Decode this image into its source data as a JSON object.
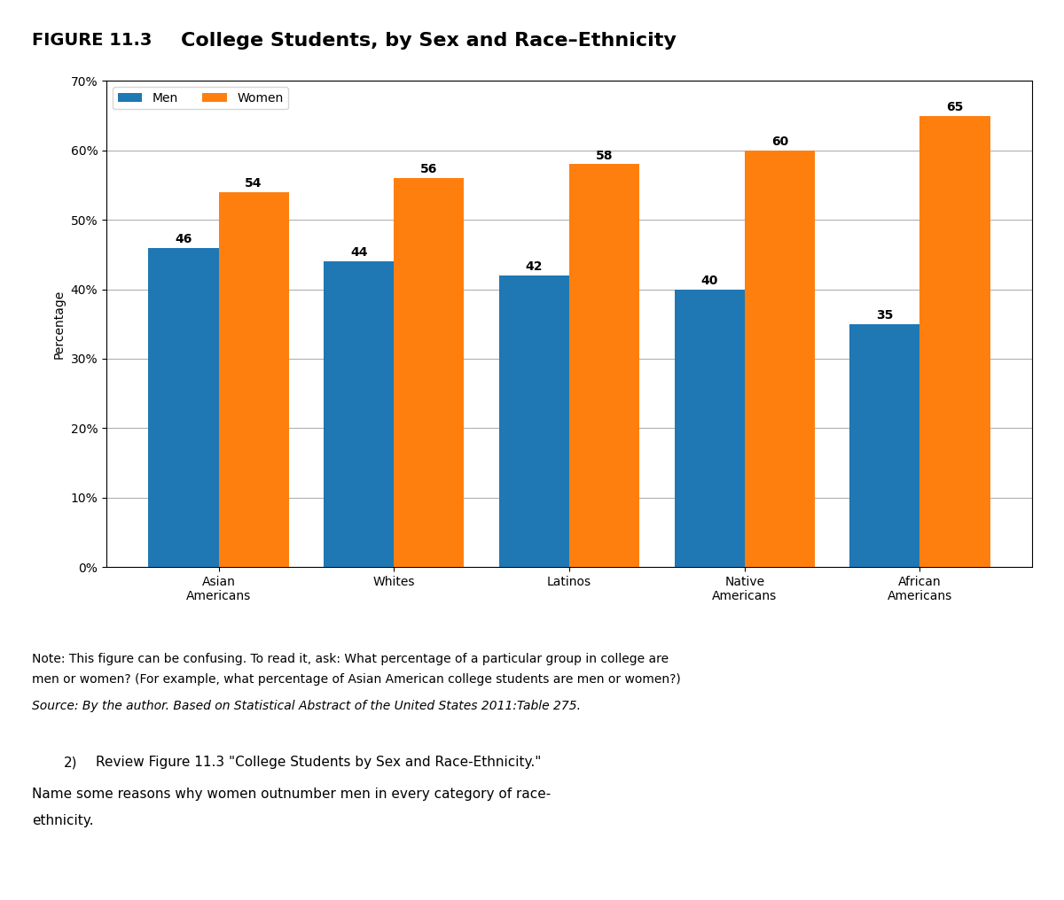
{
  "chart_data": {
    "type": "bar",
    "title": "College Students, by Sex and Race–Ethnicity",
    "ylabel": "Percentage",
    "categories": [
      "Asian\nAmericans",
      "Whites",
      "Latinos",
      "Native\nAmericans",
      "African\nAmericans"
    ],
    "series": [
      {
        "name": "Men",
        "values": [
          46,
          44,
          42,
          40,
          35
        ]
      },
      {
        "name": "Women",
        "values": [
          54,
          56,
          58,
          60,
          65
        ]
      }
    ],
    "ylim": [
      0,
      70
    ],
    "yticks": [
      {
        "value": 0,
        "label": "0%"
      },
      {
        "value": 10,
        "label": "10%"
      },
      {
        "value": 20,
        "label": "20%"
      },
      {
        "value": 30,
        "label": "30%"
      },
      {
        "value": 40,
        "label": "40%"
      },
      {
        "value": 50,
        "label": "50%"
      },
      {
        "value": 60,
        "label": "60%"
      },
      {
        "value": 70,
        "label": "70%"
      }
    ],
    "grid": true,
    "legend": "upper left",
    "data_labels": true,
    "annotations": [
      "FIGURE 11.3",
      "Note: This figure can be confusing. To read it, ask: What percentage of a particular group in college are",
      "men or women? (For example, what percentage of Asian American college students are men or women?)",
      "Source: By the author. Based on Statistical Abstract of the United States 2011:Table 275.",
      "2)",
      "Review Figure 11.3 \"College Students by Sex and Race-Ethnicity.\"",
      "Name some reasons why women outnumber men in every category of race-",
      "ethnicity."
    ]
  }
}
